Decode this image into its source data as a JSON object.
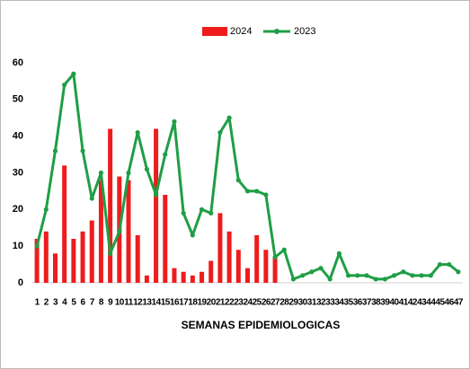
{
  "chart_data": {
    "type": "bar_line",
    "x_label": "SEMANAS  EPIDEMIOLOGICAS",
    "categories": [
      "1",
      "2",
      "3",
      "4",
      "5",
      "6",
      "7",
      "8",
      "9",
      "10",
      "11",
      "12",
      "13",
      "14",
      "15",
      "16",
      "17",
      "18",
      "19",
      "20",
      "21",
      "22",
      "23",
      "24",
      "25",
      "26",
      "27",
      "28",
      "29",
      "30",
      "31",
      "32",
      "33",
      "34",
      "35",
      "36",
      "37",
      "38",
      "39",
      "40",
      "41",
      "42",
      "43",
      "44",
      "45",
      "46",
      "47"
    ],
    "series": [
      {
        "name": "2024",
        "type": "bar",
        "color": "#ee1c1c",
        "values": [
          12,
          14,
          8,
          32,
          12,
          14,
          17,
          28,
          42,
          29,
          28,
          13,
          2,
          42,
          24,
          4,
          3,
          2,
          3,
          6,
          19,
          14,
          9,
          4,
          13,
          9,
          7,
          null,
          null,
          null,
          null,
          null,
          null,
          null,
          null,
          null,
          null,
          null,
          null,
          null,
          null,
          null,
          null,
          null,
          null,
          null,
          null
        ]
      },
      {
        "name": "2023",
        "type": "line",
        "color": "#1f9e46",
        "values": [
          10,
          20,
          36,
          54,
          57,
          36,
          23,
          30,
          8,
          14,
          30,
          41,
          31,
          24,
          35,
          44,
          19,
          13,
          20,
          19,
          41,
          45,
          28,
          25,
          25,
          24,
          7,
          9,
          1,
          2,
          3,
          4,
          1,
          8,
          2,
          2,
          2,
          1,
          1,
          2,
          3,
          2,
          2,
          2,
          5,
          5,
          3
        ]
      }
    ],
    "ylim": [
      0,
      60
    ],
    "yticks": [
      0,
      10,
      20,
      30,
      40,
      50,
      60
    ],
    "legend": "top"
  }
}
